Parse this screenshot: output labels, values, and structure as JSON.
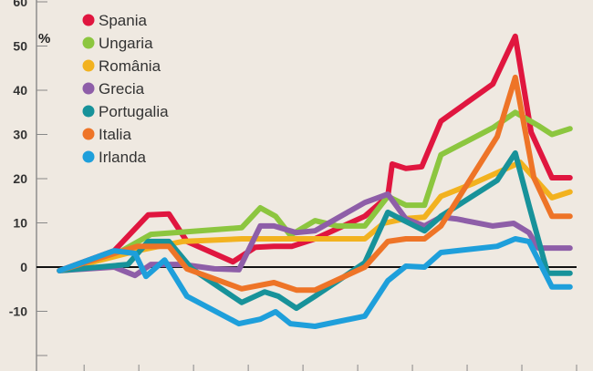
{
  "chart_data": {
    "type": "line",
    "title": "",
    "xlabel": "",
    "ylabel": "%",
    "ylim": [
      -20,
      60
    ],
    "xlim": [
      -0.87,
      9.0
    ],
    "yticks": [
      60,
      50,
      40,
      30,
      20,
      10,
      0,
      -10,
      -20
    ],
    "ytick_labels": [
      "60",
      "50",
      "40",
      "30",
      "20",
      "10",
      "0",
      "-10",
      ""
    ],
    "xticks": [
      0,
      1,
      2,
      3,
      4,
      5,
      6,
      7,
      8,
      9
    ],
    "grid": false,
    "legend_position": "top-left",
    "series": [
      {
        "name": "Spania",
        "color": "#e0163f",
        "x": [
          -0.45,
          0.55,
          1.17,
          1.55,
          1.88,
          2.72,
          3.13,
          3.47,
          3.8,
          4.22,
          5.13,
          5.55,
          5.63,
          5.88,
          6.17,
          6.52,
          7.47,
          7.88,
          8.17,
          8.55,
          8.88
        ],
        "y": [
          -0.8,
          3.7,
          11.8,
          12,
          5.8,
          1.2,
          4.5,
          4.7,
          4.7,
          6.4,
          11.5,
          16,
          23.3,
          22.3,
          22.7,
          33,
          41.4,
          52.2,
          30.5,
          20.2,
          20.2
        ]
      },
      {
        "name": "Ungaria",
        "color": "#8cc63f",
        "x": [
          -0.45,
          0.55,
          1.22,
          1.88,
          2.88,
          3.22,
          3.5,
          3.77,
          4.22,
          4.63,
          5.13,
          5.55,
          5.88,
          6.22,
          6.52,
          7.47,
          7.88,
          8.3,
          8.55,
          8.88
        ],
        "y": [
          -0.8,
          2.7,
          7.4,
          8,
          8.9,
          13.4,
          11.5,
          7.2,
          10.5,
          9.3,
          9.3,
          16,
          14,
          14,
          25.4,
          31.5,
          35,
          32,
          30,
          31.3
        ]
      },
      {
        "name": "România",
        "color": "#f2b21f",
        "x": [
          -0.45,
          0.97,
          1.8,
          2.88,
          3.47,
          4.22,
          5.13,
          5.47,
          5.88,
          6.22,
          6.52,
          7.13,
          7.97,
          8.55,
          8.88
        ],
        "y": [
          -0.8,
          3.7,
          5.8,
          6.4,
          6.4,
          6.4,
          6.4,
          9.9,
          11,
          11.3,
          16,
          19,
          23.7,
          15.7,
          17
        ]
      },
      {
        "name": "Grecia",
        "color": "#8e5ea8",
        "x": [
          -0.45,
          0.55,
          0.93,
          1.22,
          1.8,
          2.38,
          2.83,
          3.22,
          3.47,
          3.88,
          4.22,
          5.13,
          5.55,
          5.88,
          6.22,
          6.52,
          6.8,
          7.47,
          7.85,
          8.13,
          8.3,
          8.88
        ],
        "y": [
          -0.8,
          0,
          -1.9,
          0.6,
          0.6,
          -0.4,
          -0.6,
          9.3,
          9.3,
          7.8,
          8.2,
          14.6,
          16.5,
          10.9,
          9.3,
          11.3,
          10.9,
          9.3,
          9.9,
          7.8,
          4.3,
          4.3
        ]
      },
      {
        "name": "Portugalia",
        "color": "#17929a",
        "x": [
          -0.45,
          0.8,
          1.17,
          1.55,
          1.97,
          2.88,
          3.3,
          3.55,
          3.88,
          4.22,
          5.13,
          5.55,
          5.88,
          6.22,
          6.52,
          7.55,
          7.88,
          8.13,
          8.47,
          8.88
        ],
        "y": [
          -0.8,
          0.6,
          5.8,
          5.8,
          -0.4,
          -8,
          -5.6,
          -6.6,
          -9.3,
          -6.6,
          1,
          12.4,
          10.3,
          8.2,
          11.5,
          19.6,
          25.8,
          14,
          -1.4,
          -1.4
        ]
      },
      {
        "name": "Italia",
        "color": "#ee7427",
        "x": [
          -0.45,
          0.97,
          1.55,
          1.88,
          2.88,
          3.47,
          3.88,
          4.22,
          5.13,
          5.55,
          5.88,
          6.22,
          6.52,
          7.55,
          7.88,
          8.22,
          8.55,
          8.88
        ],
        "y": [
          -0.8,
          4.7,
          4.7,
          -0.4,
          -4.9,
          -3.5,
          -5.2,
          -5.2,
          0,
          5.8,
          6.4,
          6.4,
          9.3,
          29.5,
          42.9,
          20.2,
          11.5,
          11.5
        ]
      },
      {
        "name": "Irlanda",
        "color": "#1e9fdb",
        "x": [
          -0.45,
          0.55,
          0.93,
          1.13,
          1.47,
          1.88,
          2.83,
          3.22,
          3.5,
          3.77,
          4.22,
          5.13,
          5.55,
          5.88,
          6.22,
          6.52,
          7.55,
          7.88,
          8.13,
          8.55,
          8.88
        ],
        "y": [
          -0.8,
          3.7,
          3.1,
          -2.1,
          1.6,
          -6.6,
          -12.8,
          -11.8,
          -10.1,
          -12.8,
          -13.4,
          -11.1,
          -3.1,
          0.2,
          0,
          3.3,
          4.7,
          6.4,
          5.8,
          -4.5,
          -4.5
        ]
      }
    ]
  }
}
